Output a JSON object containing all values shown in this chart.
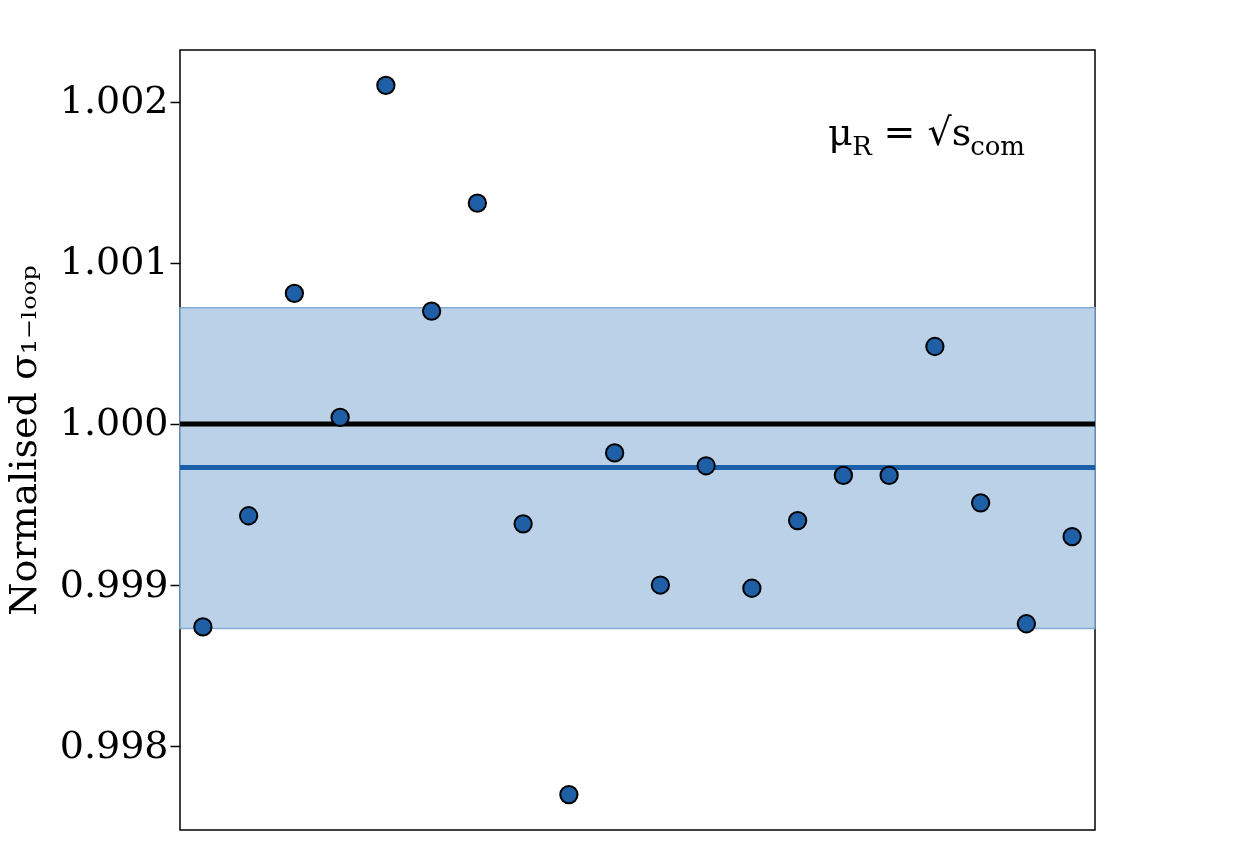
{
  "chart_data": {
    "type": "scatter",
    "ylabel": "Normalised σ₁₋ₗₒₒₚ",
    "annotations": [
      "μ$_{R}$ = √s$_{com}$"
    ],
    "categories": [
      null,
      null,
      null,
      null,
      null,
      null,
      null,
      null,
      null,
      null,
      null,
      null,
      null,
      null,
      null,
      null,
      null,
      null,
      null,
      null
    ],
    "series": [
      {
        "color": "#1f5fa6",
        "values": [
          0.99874,
          0.99943,
          1.00081,
          1.00004,
          1.0021,
          1.0007,
          1.00137,
          0.99938,
          0.9977,
          0.99982,
          0.999,
          0.99974,
          0.99898,
          0.9994,
          0.99968,
          0.99968,
          1.00048,
          0.99951,
          0.99876,
          0.9993
        ]
      }
    ],
    "marker": "circle",
    "ylim": [
      0.99748,
      1.00232
    ],
    "yticks": [
      0.998,
      0.999,
      {
        "value": 1.0,
        "label": "1.000"
      },
      1.001,
      1.002
    ],
    "tick_labels": "y",
    "grid": false,
    "ref_lines": [
      {
        "axis": "y",
        "value": 1.0,
        "color": "#000000"
      },
      {
        "axis": "y",
        "value": 0.99973,
        "color": "#1a5fa8"
      }
    ],
    "bands": [
      {
        "axis": "y",
        "from": 0.99873,
        "to": 1.00072,
        "color": "#b7cfe6"
      }
    ]
  }
}
